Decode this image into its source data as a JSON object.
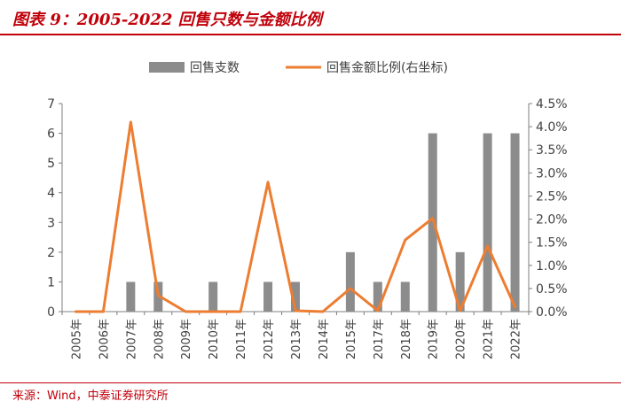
{
  "header": {
    "title": "图表 9：2005-2022 回售只数与金额比例"
  },
  "footer": {
    "source": "来源：Wind，中泰证券研究所"
  },
  "colors": {
    "accent": "#c0000a",
    "bar": "#8c8c8c",
    "line": "#ed7d31",
    "axis": "#7f7f7f"
  },
  "chart_data": {
    "type": "bar",
    "categories": [
      "2005年",
      "2006年",
      "2007年",
      "2008年",
      "2009年",
      "2010年",
      "2011年",
      "2012年",
      "2013年",
      "2014年",
      "2015年",
      "2017年",
      "2018年",
      "2019年",
      "2020年",
      "2021年",
      "2022年"
    ],
    "series": [
      {
        "name": "回售支数",
        "type": "bar",
        "axis": "left",
        "values": [
          0,
          0,
          1,
          1,
          0,
          1,
          0,
          1,
          1,
          0,
          2,
          1,
          1,
          6,
          2,
          6,
          6
        ]
      },
      {
        "name": "回售金额比例(右坐标)",
        "type": "line",
        "axis": "right",
        "values": [
          0.0,
          0.0,
          4.1,
          0.35,
          0.0,
          0.0,
          0.0,
          2.8,
          0.02,
          0.0,
          0.5,
          0.02,
          1.55,
          2.02,
          0.02,
          1.42,
          0.1
        ]
      }
    ],
    "yleft": {
      "ylim": [
        0,
        7
      ],
      "ticks": [
        "0",
        "1",
        "2",
        "3",
        "4",
        "5",
        "6",
        "7"
      ]
    },
    "yright": {
      "ylim": [
        0,
        4.5
      ],
      "ticks": [
        "0.0%",
        "0.5%",
        "1.0%",
        "1.5%",
        "2.0%",
        "2.5%",
        "3.0%",
        "3.5%",
        "4.0%",
        "4.5%"
      ]
    },
    "legend": {
      "position": "top-center"
    },
    "grid": false
  }
}
